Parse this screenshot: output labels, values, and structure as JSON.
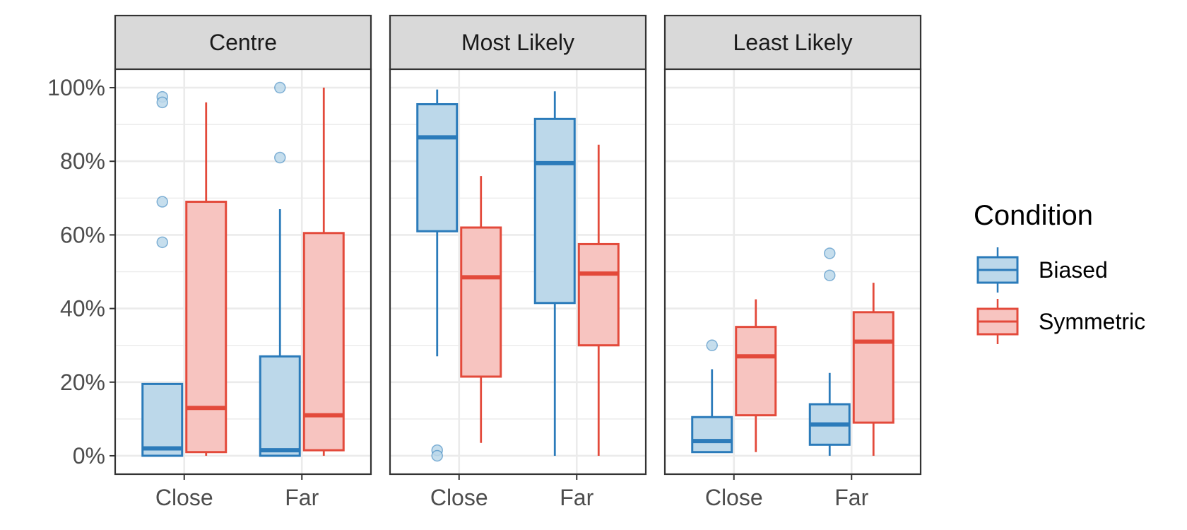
{
  "chart_data": {
    "type": "boxplot",
    "facets": [
      "Centre",
      "Most Likely",
      "Least Likely"
    ],
    "categories": [
      "Close",
      "Far"
    ],
    "ylim": [
      -5,
      105
    ],
    "yticks": [
      0,
      20,
      40,
      60,
      80,
      100
    ],
    "ytick_labels": [
      "0%",
      "20%",
      "40%",
      "60%",
      "80%",
      "100%"
    ],
    "grid": true,
    "legend": {
      "title": "Condition",
      "position": "right",
      "entries": [
        {
          "name": "Biased",
          "stroke": "#2b7bba",
          "fill": "#bcd8ea"
        },
        {
          "name": "Symmetric",
          "stroke": "#e34a3b",
          "fill": "#f7c4c0"
        }
      ]
    },
    "series": [
      {
        "name": "Biased",
        "boxes": [
          {
            "facet": "Centre",
            "category": "Close",
            "min": 0,
            "q1": 0,
            "median": 2,
            "q3": 19.5,
            "max": 19.5,
            "outliers": [
              97.5,
              96,
              69,
              58
            ]
          },
          {
            "facet": "Centre",
            "category": "Far",
            "min": 0,
            "q1": 0,
            "median": 1.5,
            "q3": 27,
            "max": 67,
            "outliers": [
              100,
              81
            ]
          },
          {
            "facet": "Most Likely",
            "category": "Close",
            "min": 27,
            "q1": 61,
            "median": 86.5,
            "q3": 95.5,
            "max": 99.5,
            "outliers": [
              1.5,
              0
            ]
          },
          {
            "facet": "Most Likely",
            "category": "Far",
            "min": 0,
            "q1": 41.5,
            "median": 79.5,
            "q3": 91.5,
            "max": 99,
            "outliers": []
          },
          {
            "facet": "Least Likely",
            "category": "Close",
            "min": 1,
            "q1": 1,
            "median": 4,
            "q3": 10.5,
            "max": 23.5,
            "outliers": [
              30
            ]
          },
          {
            "facet": "Least Likely",
            "category": "Far",
            "min": 0,
            "q1": 3,
            "median": 8.5,
            "q3": 14,
            "max": 22.5,
            "outliers": [
              55,
              49
            ]
          }
        ]
      },
      {
        "name": "Symmetric",
        "boxes": [
          {
            "facet": "Centre",
            "category": "Close",
            "min": 0,
            "q1": 1,
            "median": 13,
            "q3": 69,
            "max": 96,
            "outliers": []
          },
          {
            "facet": "Centre",
            "category": "Far",
            "min": 0,
            "q1": 1.5,
            "median": 11,
            "q3": 60.5,
            "max": 100,
            "outliers": []
          },
          {
            "facet": "Most Likely",
            "category": "Close",
            "min": 3.5,
            "q1": 21.5,
            "median": 48.5,
            "q3": 62,
            "max": 76,
            "outliers": []
          },
          {
            "facet": "Most Likely",
            "category": "Far",
            "min": 0,
            "q1": 30,
            "median": 49.5,
            "q3": 57.5,
            "max": 84.5,
            "outliers": []
          },
          {
            "facet": "Least Likely",
            "category": "Close",
            "min": 1,
            "q1": 11,
            "median": 27,
            "q3": 35,
            "max": 42.5,
            "outliers": []
          },
          {
            "facet": "Least Likely",
            "category": "Far",
            "min": 0,
            "q1": 9,
            "median": 31,
            "q3": 39,
            "max": 47,
            "outliers": []
          }
        ]
      }
    ]
  }
}
